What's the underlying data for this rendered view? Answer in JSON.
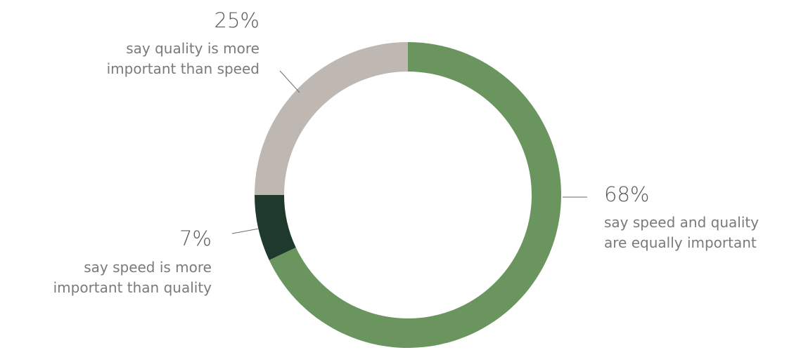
{
  "chart_data": {
    "type": "pie",
    "donut": true,
    "title": "",
    "slices": [
      {
        "label_pct": "68%",
        "value": 68,
        "color": "#6a955f",
        "desc": [
          "say speed and quality",
          "are equally important"
        ]
      },
      {
        "label_pct": "7%",
        "value": 7,
        "color": "#1f3a2c",
        "desc": [
          "say speed is more",
          "important than quality"
        ]
      },
      {
        "label_pct": "25%",
        "value": 25,
        "color": "#bfb8b2",
        "desc": [
          "say quality is more",
          "important than speed"
        ]
      }
    ]
  }
}
